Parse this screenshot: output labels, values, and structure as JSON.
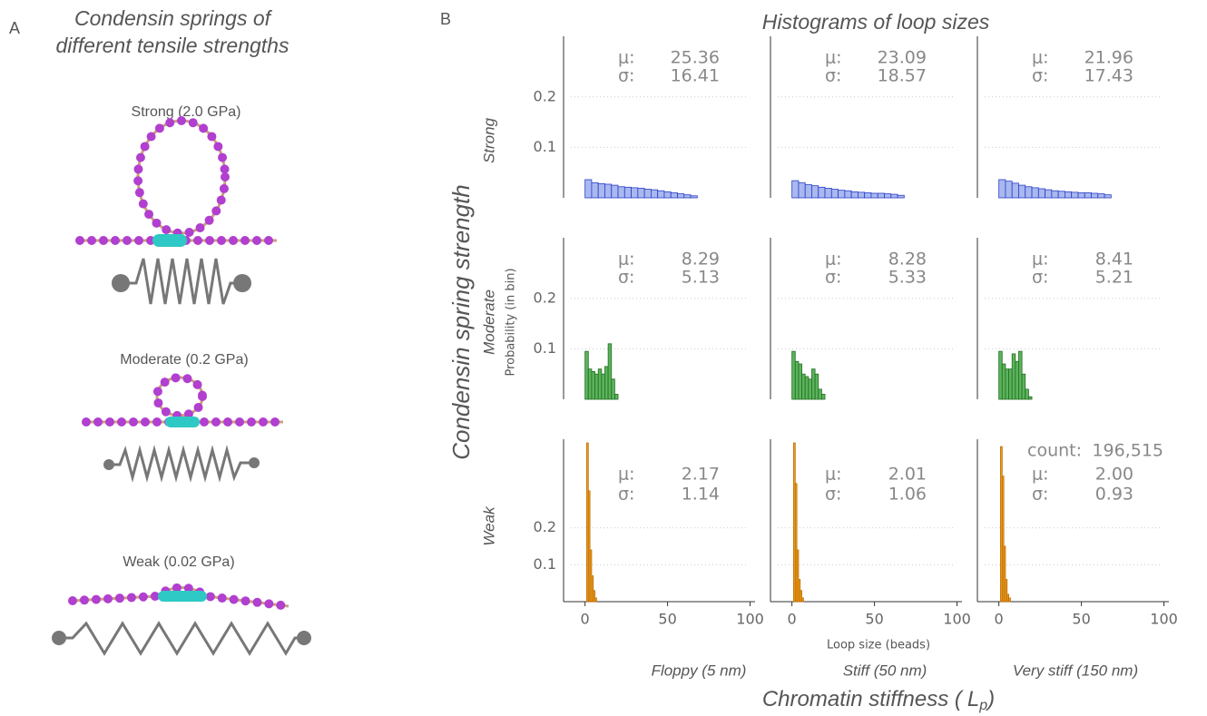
{
  "panel_a": {
    "label": "A",
    "title_lines": [
      "Condensin springs of",
      "different tensile strengths"
    ],
    "springs": [
      "Strong (2.0 GPa)",
      "Moderate (0.2 GPa)",
      "Weak (0.02 GPa)"
    ]
  },
  "panel_b": {
    "label": "B",
    "title": "Histograms of loop sizes",
    "row_axis_label": "Condensin spring strength",
    "rows": [
      "Strong",
      "Moderate",
      "Weak"
    ],
    "ylabel": "Probability (in bin)",
    "xlabel": "Loop size (beads)",
    "columns": [
      "Floppy (5 nm)",
      "Stiff (50 nm)",
      "Very stiff (150 nm)"
    ],
    "column_axis_label": {
      "prefix": "Chromatin stiffness (",
      "symbol": "L",
      "subscript": "p",
      "suffix": ")"
    },
    "mean_label": "μ:",
    "sd_label": "σ:",
    "count_label": "count:"
  },
  "chart_data": [
    {
      "type": "histogram",
      "color": "#a9b8ef",
      "edgecolor": "#2a3fc9",
      "bins": [
        0,
        4,
        8,
        12,
        16,
        20,
        24,
        28,
        32,
        36,
        40,
        44,
        48,
        52,
        56,
        60,
        64,
        68
      ],
      "values": [
        0.036,
        0.03,
        0.028,
        0.027,
        0.025,
        0.022,
        0.021,
        0.02,
        0.019,
        0.017,
        0.016,
        0.014,
        0.012,
        0.01,
        0.008,
        0.006,
        0.004
      ],
      "xlim": [
        -13,
        103
      ],
      "ylim": [
        0,
        0.32
      ],
      "yticks": [
        0.1,
        0.2
      ],
      "mean": 25.36,
      "sd": 16.41
    },
    {
      "type": "histogram",
      "color": "#a9b8ef",
      "edgecolor": "#2a3fc9",
      "bins": [
        0,
        4,
        8,
        12,
        16,
        20,
        24,
        28,
        32,
        36,
        40,
        44,
        48,
        52,
        56,
        60,
        64,
        68
      ],
      "values": [
        0.034,
        0.03,
        0.026,
        0.024,
        0.021,
        0.019,
        0.017,
        0.015,
        0.014,
        0.012,
        0.011,
        0.01,
        0.009,
        0.009,
        0.008,
        0.007,
        0.005
      ],
      "xlim": [
        -13,
        103
      ],
      "ylim": [
        0,
        0.32
      ],
      "yticks": [
        0.1,
        0.2
      ],
      "mean": 23.09,
      "sd": 18.57
    },
    {
      "type": "histogram",
      "color": "#a9b8ef",
      "edgecolor": "#2a3fc9",
      "bins": [
        0,
        4,
        8,
        12,
        16,
        20,
        24,
        28,
        32,
        36,
        40,
        44,
        48,
        52,
        56,
        60,
        64,
        68
      ],
      "values": [
        0.036,
        0.033,
        0.029,
        0.025,
        0.022,
        0.02,
        0.018,
        0.016,
        0.014,
        0.013,
        0.012,
        0.011,
        0.01,
        0.01,
        0.009,
        0.008,
        0.006
      ],
      "xlim": [
        -13,
        103
      ],
      "ylim": [
        0,
        0.32
      ],
      "yticks": [
        0.1,
        0.2
      ],
      "mean": 21.96,
      "sd": 17.43
    },
    {
      "type": "histogram",
      "color": "#5cb35c",
      "edgecolor": "#1f6e1f",
      "bins": [
        0,
        2,
        4,
        6,
        8,
        10,
        12,
        14,
        16,
        18,
        20
      ],
      "values": [
        0.095,
        0.06,
        0.055,
        0.05,
        0.06,
        0.05,
        0.065,
        0.11,
        0.04,
        0.01
      ],
      "xlim": [
        -13,
        103
      ],
      "ylim": [
        0,
        0.32
      ],
      "yticks": [
        0.1,
        0.2
      ],
      "mean": 8.29,
      "sd": 5.13
    },
    {
      "type": "histogram",
      "color": "#5cb35c",
      "edgecolor": "#1f6e1f",
      "bins": [
        0,
        2,
        4,
        6,
        8,
        10,
        12,
        14,
        16,
        18,
        20
      ],
      "values": [
        0.095,
        0.075,
        0.07,
        0.05,
        0.045,
        0.04,
        0.06,
        0.05,
        0.02,
        0.01
      ],
      "xlim": [
        -13,
        103
      ],
      "ylim": [
        0,
        0.32
      ],
      "yticks": [
        0.1,
        0.2
      ],
      "mean": 8.28,
      "sd": 5.33
    },
    {
      "type": "histogram",
      "color": "#5cb35c",
      "edgecolor": "#1f6e1f",
      "bins": [
        0,
        2,
        4,
        6,
        8,
        10,
        12,
        14,
        16,
        18,
        20
      ],
      "values": [
        0.095,
        0.07,
        0.06,
        0.06,
        0.09,
        0.075,
        0.095,
        0.05,
        0.02,
        0.005
      ],
      "xlim": [
        -13,
        103
      ],
      "ylim": [
        0,
        0.32
      ],
      "yticks": [
        0.1,
        0.2
      ],
      "mean": 8.41,
      "sd": 5.21
    },
    {
      "type": "histogram",
      "color": "#f5a21f",
      "edgecolor": "#b86a00",
      "bins": [
        1,
        2,
        3,
        4,
        5,
        6,
        7
      ],
      "values": [
        0.43,
        0.3,
        0.14,
        0.07,
        0.03,
        0.01
      ],
      "xlim": [
        -13,
        103
      ],
      "ylim": [
        0,
        0.44
      ],
      "xticks": [
        0,
        50,
        100
      ],
      "yticks": [
        0.1,
        0.2
      ],
      "mean": 2.17,
      "sd": 1.14
    },
    {
      "type": "histogram",
      "color": "#f5a21f",
      "edgecolor": "#b86a00",
      "bins": [
        1,
        2,
        3,
        4,
        5,
        6,
        7
      ],
      "values": [
        0.43,
        0.32,
        0.14,
        0.06,
        0.03,
        0.01
      ],
      "xlim": [
        -13,
        103
      ],
      "ylim": [
        0,
        0.44
      ],
      "xticks": [
        0,
        50,
        100
      ],
      "yticks": [
        0.1,
        0.2
      ],
      "mean": 2.01,
      "sd": 1.06
    },
    {
      "type": "histogram",
      "color": "#f5a21f",
      "edgecolor": "#b86a00",
      "bins": [
        1,
        2,
        3,
        4,
        5,
        6,
        7
      ],
      "values": [
        0.42,
        0.34,
        0.15,
        0.06,
        0.02,
        0.01
      ],
      "xlim": [
        -13,
        103
      ],
      "ylim": [
        0,
        0.44
      ],
      "xticks": [
        0,
        50,
        100
      ],
      "yticks": [
        0.1,
        0.2
      ],
      "mean": {
        "value": 2,
        "label": "2.00"
      },
      "sd": 0.93,
      "count": {
        "value": 196515,
        "label": "196,515"
      }
    }
  ]
}
